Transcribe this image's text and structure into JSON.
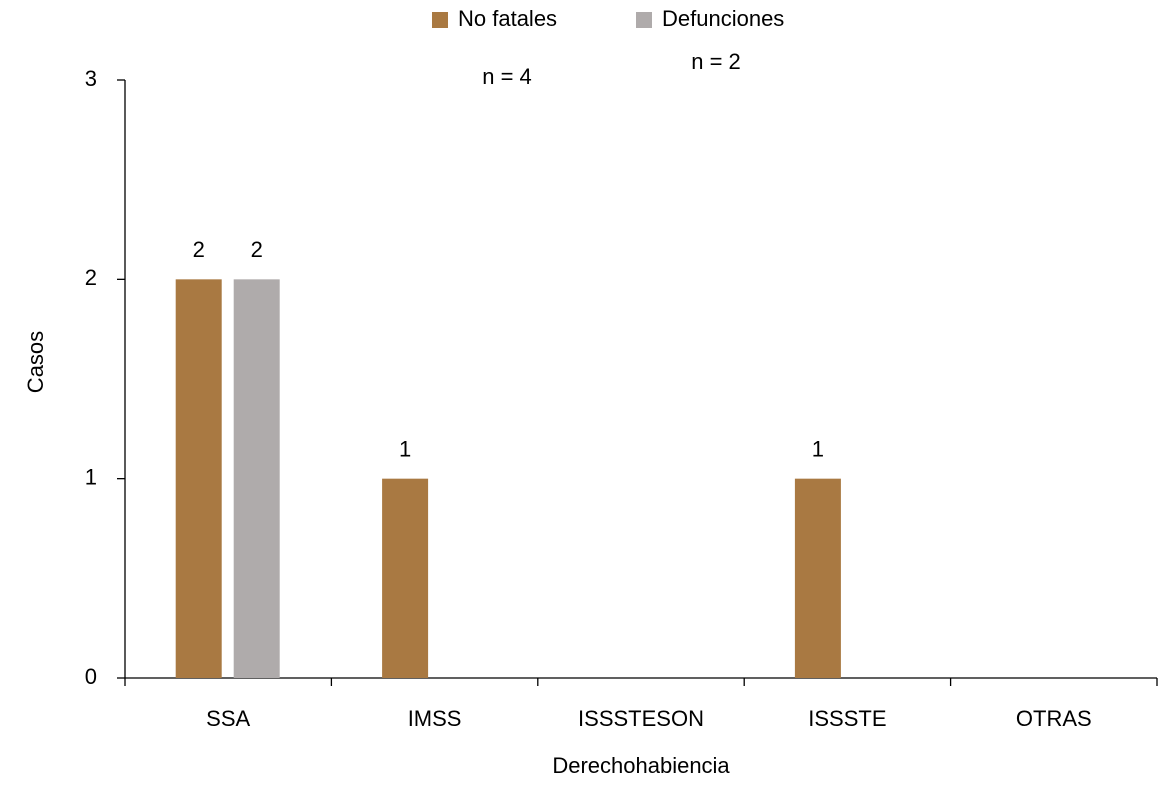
{
  "chart_data": {
    "type": "bar",
    "categories": [
      "SSA",
      "IMSS",
      "ISSSTESON",
      "ISSSTE",
      "OTRAS"
    ],
    "series": [
      {
        "name": "No fatales",
        "color": "#a97942",
        "values": [
          2,
          1,
          0,
          1,
          0
        ]
      },
      {
        "name": "Defunciones",
        "color": "#afabab",
        "values": [
          2,
          0,
          0,
          0,
          0
        ]
      }
    ],
    "annotations": [
      "n = 4",
      "n = 2"
    ],
    "y_label": "Casos",
    "x_label": "Derechohabiencia",
    "ylim": [
      0,
      3
    ],
    "yticks": [
      0,
      1,
      2,
      3
    ],
    "grid": false,
    "legend": "top"
  }
}
